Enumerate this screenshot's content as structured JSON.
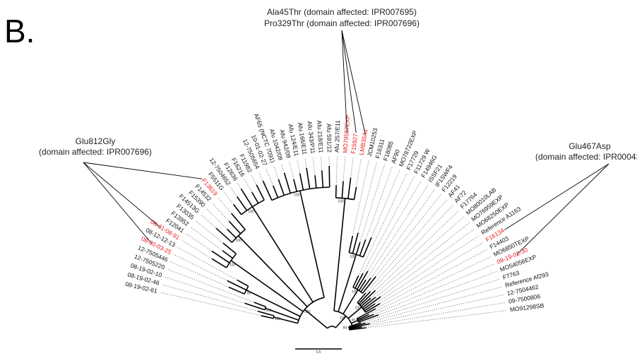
{
  "panel_label": "B.",
  "colors": {
    "highlight": "#e8191c",
    "normal": "#111111"
  },
  "annotations": {
    "top_line1": "Ala45Thr (domain affected: IPR007695)",
    "top_line2": "Pro329Thr (domain affected: IPR007696)",
    "left_line1": "Glu812Gly",
    "left_line2": "(domain affected: IPR007696)",
    "right_line1": "Glu467Asp",
    "right_line2": "(domain affected: IPR000432)"
  },
  "scale_label": "0.5",
  "bootstrap_values": [
    "100",
    "100",
    "100",
    "93",
    "100",
    "100",
    "100",
    "100",
    "100",
    "100",
    "100",
    "100",
    "100",
    "87",
    "84",
    "95",
    "100",
    "100",
    "98",
    "87",
    "87",
    "97",
    "100",
    "100"
  ],
  "leaves": [
    {
      "label": "08-19-02-61",
      "highlighted": false
    },
    {
      "label": "08-19-02-46",
      "highlighted": false
    },
    {
      "label": "08-19-02-10",
      "highlighted": false
    },
    {
      "label": "12-7505220",
      "highlighted": false
    },
    {
      "label": "12-7505446",
      "highlighted": false
    },
    {
      "label": "08-30-03-25",
      "highlighted": true
    },
    {
      "label": "08-12-12-13",
      "highlighted": false
    },
    {
      "label": "08-31-08-91",
      "highlighted": true
    },
    {
      "label": "F12041",
      "highlighted": false
    },
    {
      "label": "F13952",
      "highlighted": false
    },
    {
      "label": "F13035",
      "highlighted": false
    },
    {
      "label": "F14513G",
      "highlighted": false
    },
    {
      "label": "F15390",
      "highlighted": false
    },
    {
      "label": "F14532",
      "highlighted": false
    },
    {
      "label": "F13619",
      "highlighted": true
    },
    {
      "label": "F5511G",
      "highlighted": false
    },
    {
      "label": "12-7504652",
      "highlighted": false
    },
    {
      "label": "F12636",
      "highlighted": false
    },
    {
      "label": "F16216",
      "highlighted": false
    },
    {
      "label": "F11982",
      "highlighted": false
    },
    {
      "label": "12-7505654",
      "highlighted": false
    },
    {
      "label": "10-01-02-27",
      "highlighted": false
    },
    {
      "label": "AF65 (NCTC 7091)",
      "highlighted": false
    },
    {
      "label": "Afu 1042/09",
      "highlighted": false
    },
    {
      "label": "Afu 942/09",
      "highlighted": false
    },
    {
      "label": "Afu 124/E11",
      "highlighted": false
    },
    {
      "label": "Afu 166/E11",
      "highlighted": false
    },
    {
      "label": "Afu 343/P11",
      "highlighted": false
    },
    {
      "label": "Afu 218/E11",
      "highlighted": false
    },
    {
      "label": "Afu 591/12",
      "highlighted": false
    },
    {
      "label": "Afu 257/E11",
      "highlighted": false
    },
    {
      "label": "MO79587EXP",
      "highlighted": true
    },
    {
      "label": "F15927",
      "highlighted": true
    },
    {
      "label": "LMB35As",
      "highlighted": true
    },
    {
      "label": "JCM10253",
      "highlighted": false
    },
    {
      "label": "F16311",
      "highlighted": false
    },
    {
      "label": "F18085",
      "highlighted": false
    },
    {
      "label": "AF90",
      "highlighted": false
    },
    {
      "label": "MO78722EXP",
      "highlighted": false
    },
    {
      "label": "F17729",
      "highlighted": false
    },
    {
      "label": "F11729 W",
      "highlighted": false
    },
    {
      "label": "F14946G",
      "highlighted": false
    },
    {
      "label": "ISSF21",
      "highlighted": false
    },
    {
      "label": "IF1SWF4",
      "highlighted": false
    },
    {
      "label": "F12219",
      "highlighted": false
    },
    {
      "label": "AF41",
      "highlighted": false
    },
    {
      "label": "AF72",
      "highlighted": false
    },
    {
      "label": "F17764",
      "highlighted": false
    },
    {
      "label": "MO80010LAB",
      "highlighted": false
    },
    {
      "label": "MO76959EXP",
      "highlighted": false
    },
    {
      "label": "MO68250EXP",
      "highlighted": false
    },
    {
      "label": "Reference A1163",
      "highlighted": false
    },
    {
      "label": "F16134",
      "highlighted": true
    },
    {
      "label": "F14403",
      "highlighted": false
    },
    {
      "label": "MO6850TEXP",
      "highlighted": false
    },
    {
      "label": "08-19-02-30",
      "highlighted": true
    },
    {
      "label": "MO54056EXP",
      "highlighted": false
    },
    {
      "label": "F7763",
      "highlighted": false
    },
    {
      "label": "Reference Af293",
      "highlighted": false
    },
    {
      "label": "12-7504462",
      "highlighted": false
    },
    {
      "label": "09-7500806",
      "highlighted": false
    },
    {
      "label": "MO91298SB",
      "highlighted": false
    }
  ]
}
